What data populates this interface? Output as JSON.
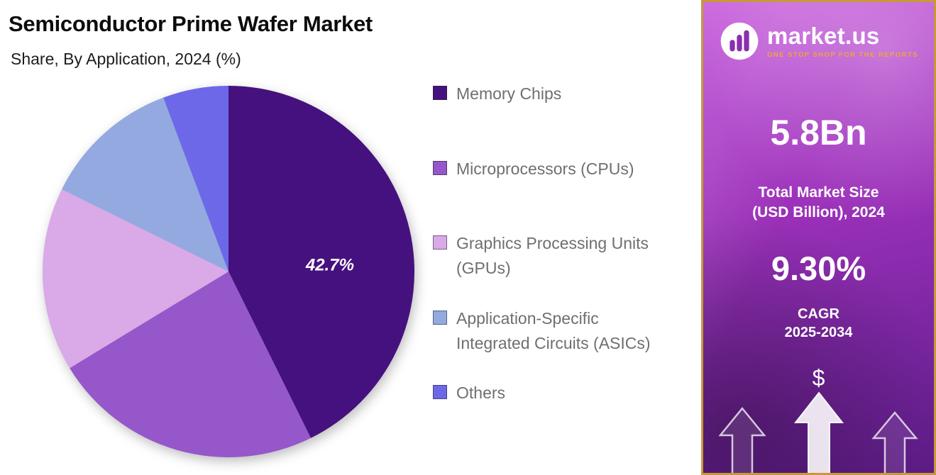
{
  "header": {
    "title": "Semiconductor Prime Wafer Market",
    "subtitle": "Share, By Application, 2024 (%)"
  },
  "chart_data": {
    "type": "pie",
    "title": "Semiconductor Prime Wafer Market",
    "subtitle": "Share, By Application, 2024 (%)",
    "unit": "%",
    "labels": [
      "Memory Chips",
      "Microprocessors (CPUs)",
      "Graphics Processing Units (GPUs)",
      "Application-Specific Integrated Circuits (ASICs)",
      "Others"
    ],
    "values": [
      42.7,
      23.6,
      16.0,
      12.0,
      5.7
    ],
    "colors": [
      "#45117e",
      "#9557c9",
      "#d9a9e8",
      "#93a9e0",
      "#6d68e8"
    ],
    "legend_lines": [
      [
        "Memory Chips"
      ],
      [
        "Microprocessors (CPUs)"
      ],
      [
        "Graphics Processing Units",
        "(GPUs)"
      ],
      [
        "Application-Specific",
        "Integrated Circuits (ASICs)"
      ],
      [
        "Others"
      ]
    ],
    "start_angle_deg": 0,
    "direction": "clockwise",
    "legend_position": "right",
    "data_labels": [
      {
        "slice": "Memory Chips",
        "text": "42.7%"
      }
    ]
  },
  "sidebar": {
    "logo": {
      "brand": "market.us",
      "tagline": "ONE STOP SHOP FOR THE REPORTS"
    },
    "stats": [
      {
        "value": "5.8Bn",
        "label_lines": [
          "Total Market Size",
          "(USD Billion), 2024"
        ]
      },
      {
        "value": "9.30%",
        "label_lines": [
          "CAGR",
          "2025-2034"
        ]
      }
    ],
    "dollar_sign": "$",
    "colors": {
      "gold_border": "#c7993c",
      "gradient_top": "#c75cdb",
      "gradient_bottom": "#5e1c88",
      "tagline": "#f0a43e",
      "slice_label": "#ffffff"
    }
  }
}
